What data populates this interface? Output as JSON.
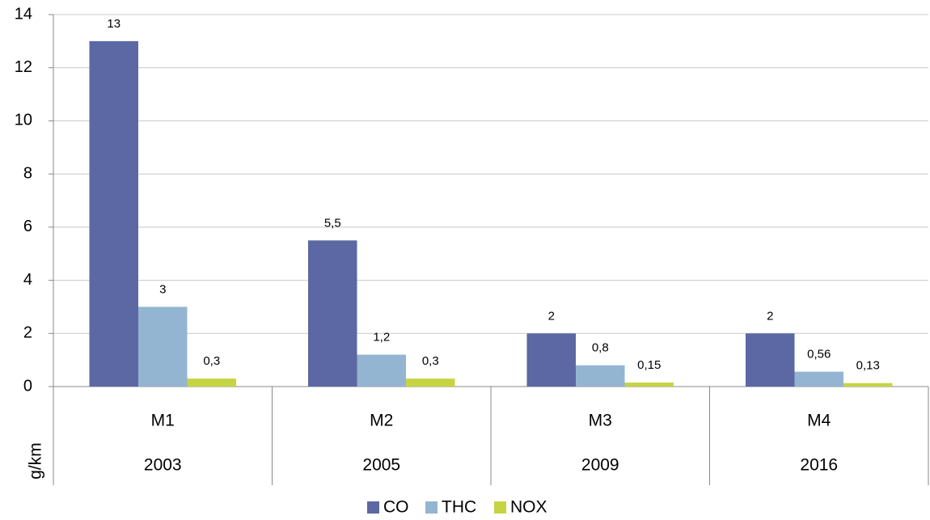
{
  "chart_data": {
    "type": "bar",
    "categories": [
      "M1",
      "M2",
      "M3",
      "M4"
    ],
    "category_years": [
      "2003",
      "2005",
      "2009",
      "2016"
    ],
    "y_axis_label": "g/km",
    "series": [
      {
        "name": "CO",
        "color": "#5b68a3",
        "values": [
          13,
          5.5,
          2,
          2
        ],
        "value_labels": [
          "13",
          "5,5",
          "2",
          "2"
        ]
      },
      {
        "name": "THC",
        "color": "#93b5d1",
        "values": [
          3,
          1.2,
          0.8,
          0.56
        ],
        "value_labels": [
          "3",
          "1,2",
          "0,8",
          "0,56"
        ]
      },
      {
        "name": "NOX",
        "color": "#c6d443",
        "values": [
          0.3,
          0.3,
          0.15,
          0.13
        ],
        "value_labels": [
          "0,3",
          "0,3",
          "0,15",
          "0,13"
        ]
      }
    ],
    "ylim": [
      0,
      14
    ],
    "yticks": [
      0,
      2,
      4,
      6,
      8,
      10,
      12,
      14
    ],
    "grid": true,
    "legend": "bottom"
  }
}
